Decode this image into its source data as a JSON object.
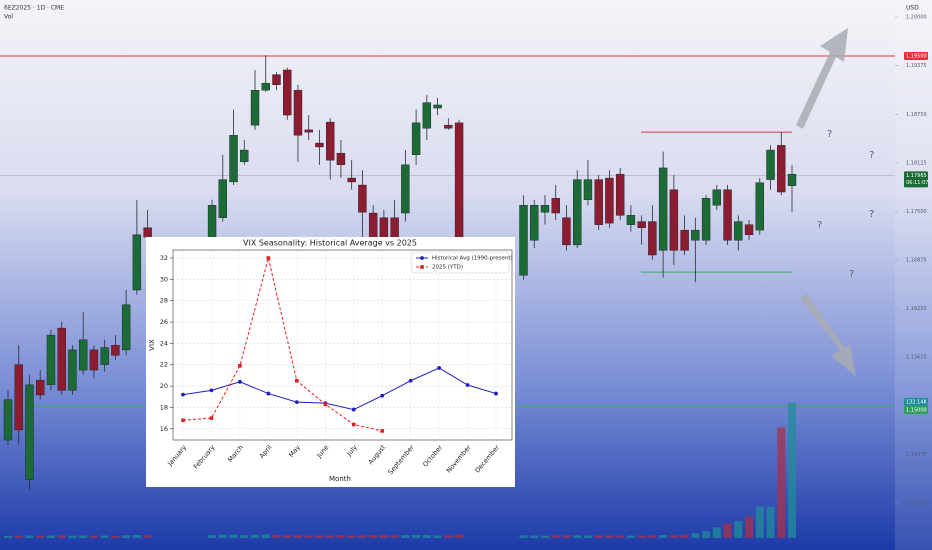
{
  "chart_data": [
    {
      "type": "candlestick",
      "title": "6EZ2025 · 1D · CME",
      "volume_label": "Vol",
      "currency": "USD",
      "up_color": "#1c6b36",
      "down_color": "#8c1c30",
      "volume_up_color": "#1f8e99",
      "volume_down_color": "#a8324a",
      "ylim": [
        1.133,
        1.2022
      ],
      "volume_ylim": [
        0,
        526000
      ],
      "yticks": [
        {
          "value": 1.2,
          "label": "1.20000"
        },
        1.19375,
        {
          "value": 1.1875,
          "label": "1.18750"
        },
        1.18125,
        {
          "value": 1.175,
          "label": "1.17500"
        },
        1.16875,
        {
          "value": 1.1625,
          "label": "1.16250"
        },
        1.15625,
        1.14375,
        {
          "value": 1.1375,
          "label": "1.13750"
        }
      ],
      "level_high": {
        "value": 1.195,
        "label": "1.19500",
        "color": "#e0323c"
      },
      "level_low": {
        "value": 1.15,
        "label": "1.15000",
        "color": "#3fae6a"
      },
      "last_price": 1.17965,
      "countdown": "06:11:07",
      "volume_tag": {
        "value": 132140,
        "label": "132.14K"
      },
      "range_top": 1.1852,
      "range_bottom": 1.1672,
      "annotations": [
        "?",
        "?",
        "?",
        "?",
        "?"
      ],
      "candles": [
        [
          1.1456,
          1.152,
          1.145,
          1.1508
        ],
        [
          1.1553,
          1.1578,
          1.145,
          1.1469
        ],
        [
          1.1405,
          1.154,
          1.1392,
          1.1527
        ],
        [
          1.1533,
          1.1546,
          1.1508,
          1.1514
        ],
        [
          1.1527,
          1.1598,
          1.152,
          1.1591
        ],
        [
          1.16,
          1.1608,
          1.1514,
          1.152
        ],
        [
          1.152,
          1.1578,
          1.1514,
          1.1572
        ],
        [
          1.1546,
          1.1621,
          1.154,
          1.1585
        ],
        [
          1.1572,
          1.1578,
          1.1536,
          1.1546
        ],
        [
          1.1553,
          1.1585,
          1.1544,
          1.1575
        ],
        [
          1.1578,
          1.1591,
          1.1559,
          1.1565
        ],
        [
          1.1572,
          1.1649,
          1.1565,
          1.163
        ],
        [
          1.1649,
          1.1765,
          1.1643,
          1.172
        ],
        [
          1.1729,
          1.1752,
          1.1707,
          1.1717
        ],
        null,
        null,
        null,
        null,
        null,
        [
          1.17,
          1.1765,
          1.1694,
          1.1758
        ],
        [
          1.1742,
          1.1823,
          1.1737,
          1.1791
        ],
        [
          1.1788,
          1.1881,
          1.1784,
          1.1848
        ],
        [
          1.1814,
          1.1842,
          1.181,
          1.1829
        ],
        [
          1.1861,
          1.1932,
          1.1855,
          1.1906
        ],
        [
          1.1906,
          1.1951,
          1.1904,
          1.1915
        ],
        [
          1.1926,
          1.1929,
          1.1906,
          1.1913
        ],
        [
          1.1932,
          1.1935,
          1.1868,
          1.1874
        ],
        [
          1.1906,
          1.1913,
          1.1814,
          1.1848
        ],
        [
          1.1855,
          1.1874,
          1.1842,
          1.1852
        ],
        [
          1.1838,
          1.1855,
          1.181,
          1.1833
        ],
        [
          1.1865,
          1.187,
          1.1791,
          1.1816
        ],
        [
          1.1825,
          1.1842,
          1.1793,
          1.181
        ],
        [
          1.1793,
          1.1816,
          1.1778,
          1.1788
        ],
        [
          1.1784,
          1.1803,
          1.1713,
          1.1749
        ],
        [
          1.1748,
          1.1758,
          1.1694,
          1.1707
        ],
        [
          1.1742,
          1.1752,
          1.1688,
          1.17
        ],
        [
          1.1742,
          1.1765,
          1.1713,
          1.1717
        ],
        [
          1.1748,
          1.1829,
          1.1737,
          1.181
        ],
        [
          1.1823,
          1.1881,
          1.181,
          1.1864
        ],
        [
          1.1857,
          1.19,
          1.1842,
          1.189
        ],
        [
          1.1883,
          1.1896,
          1.1874,
          1.1887
        ],
        [
          1.1861,
          1.187,
          1.1855,
          1.1857
        ],
        [
          1.1864,
          1.1868,
          1.1688,
          1.1707
        ],
        null,
        null,
        null,
        null,
        null,
        [
          1.1668,
          1.1771,
          1.1662,
          1.1758
        ],
        [
          1.1713,
          1.1765,
          1.1703,
          1.1758
        ],
        [
          1.1749,
          1.1771,
          1.1733,
          1.1758
        ],
        [
          1.1767,
          1.1784,
          1.1739,
          1.1748
        ],
        [
          1.1742,
          1.1758,
          1.17,
          1.1707
        ],
        [
          1.1707,
          1.1803,
          1.1703,
          1.1791
        ],
        [
          1.1765,
          1.1816,
          1.1758,
          1.1791
        ],
        [
          1.1791,
          1.1797,
          1.1726,
          1.1733
        ],
        [
          1.1793,
          1.1803,
          1.1729,
          1.1735
        ],
        [
          1.1798,
          1.1806,
          1.1739,
          1.1745
        ],
        [
          1.1733,
          1.1758,
          1.1724,
          1.1745
        ],
        [
          1.1737,
          1.1745,
          1.1707,
          1.1729
        ],
        [
          1.1737,
          1.1758,
          1.1688,
          1.1694
        ],
        [
          1.17,
          1.1827,
          1.1665,
          1.1806
        ],
        [
          1.1778,
          1.1797,
          1.1681,
          1.17
        ],
        [
          1.1726,
          1.1745,
          1.1694,
          1.17
        ],
        [
          1.1713,
          1.1742,
          1.1659,
          1.1726
        ],
        [
          1.1713,
          1.1771,
          1.1707,
          1.1767
        ],
        [
          1.1758,
          1.1784,
          1.1752,
          1.1778
        ],
        [
          1.1778,
          1.1784,
          1.1707,
          1.1713
        ],
        [
          1.1713,
          1.1745,
          1.17,
          1.1737
        ],
        [
          1.1733,
          1.1739,
          1.1713,
          1.172
        ],
        [
          1.1726,
          1.1793,
          1.172,
          1.1787
        ],
        [
          1.1791,
          1.1835,
          1.1778,
          1.1829
        ],
        [
          1.1835,
          1.1852,
          1.1771,
          1.1775
        ],
        [
          1.1783,
          1.181,
          1.1749,
          1.1798
        ]
      ],
      "volume": [
        2100,
        2300,
        2500,
        2200,
        2400,
        2600,
        2300,
        2500,
        2200,
        2400,
        2100,
        2700,
        3000,
        2600,
        null,
        null,
        null,
        null,
        null,
        2800,
        3100,
        3300,
        2900,
        3200,
        3500,
        3000,
        2700,
        2900,
        2400,
        2600,
        2500,
        2800,
        2300,
        2700,
        2900,
        3100,
        2600,
        2800,
        3000,
        2900,
        2500,
        2400,
        3600,
        null,
        null,
        null,
        null,
        null,
        2600,
        2400,
        2300,
        2500,
        2700,
        2600,
        2400,
        2800,
        2500,
        2300,
        2400,
        2200,
        2600,
        2900,
        2700,
        3200,
        4500,
        6500,
        10500,
        14000,
        16500,
        21000,
        31000,
        30500,
        108000,
        132140
      ]
    },
    {
      "type": "line",
      "title": "VIX Seasonality: Historical Average vs 2025",
      "x_label": "Month",
      "y_label": "VIX",
      "categories": [
        "January",
        "February",
        "March",
        "April",
        "May",
        "June",
        "July",
        "August",
        "September",
        "October",
        "November",
        "December"
      ],
      "series": [
        {
          "name": "Historical Avg (1990-present)",
          "color": "#1f1fbf",
          "marker": "circle",
          "dash": false,
          "values": [
            19.2,
            19.6,
            20.4,
            19.3,
            18.5,
            18.4,
            17.8,
            19.1,
            20.5,
            21.7,
            20.1,
            19.3
          ]
        },
        {
          "name": "2025 (YTD)",
          "color": "#e02020",
          "marker": "square",
          "dash": true,
          "values": [
            16.8,
            17.0,
            21.9,
            32.0,
            20.5,
            18.3,
            16.4,
            15.8,
            null,
            null,
            null,
            null
          ]
        }
      ],
      "ylim": [
        14.95,
        32.75
      ],
      "yticks": [
        16,
        18,
        20,
        22,
        24,
        26,
        28,
        30,
        32
      ],
      "grid": true,
      "legend": "top-right"
    }
  ]
}
